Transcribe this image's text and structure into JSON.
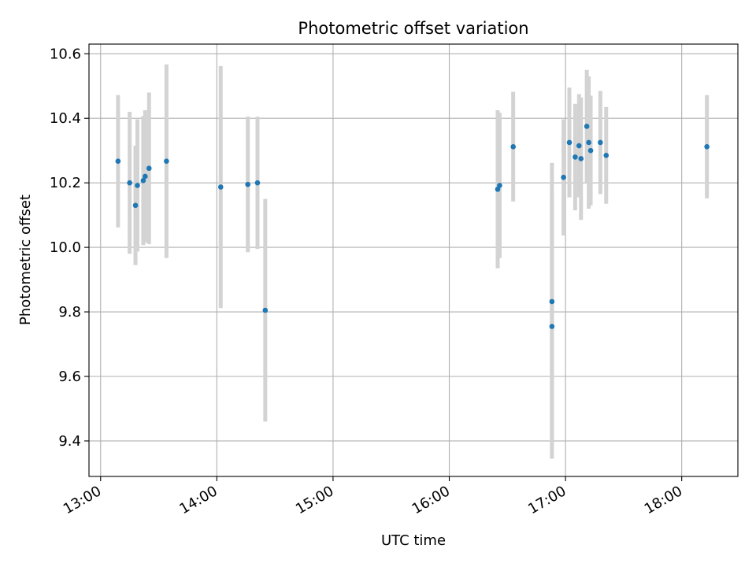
{
  "chart_data": {
    "type": "scatter",
    "title": "Photometric offset variation",
    "xlabel": "UTC time",
    "ylabel": "Photometric offset",
    "x_type": "time",
    "xlim": [
      "12:54",
      "18:29"
    ],
    "ylim": [
      9.29,
      10.63
    ],
    "x_ticks": [
      "13:00",
      "14:00",
      "15:00",
      "16:00",
      "17:00",
      "18:00"
    ],
    "y_ticks": [
      9.4,
      9.6,
      9.8,
      10.0,
      10.2,
      10.4,
      10.6
    ],
    "grid": true,
    "legend": "none",
    "colors": {
      "points": "#1f77b4",
      "errorbars": "#d3d3d3",
      "grid": "#b0b0b0"
    },
    "points": [
      {
        "x": "13:09",
        "y": 10.267,
        "err": 0.205
      },
      {
        "x": "13:15",
        "y": 10.2,
        "err": 0.22
      },
      {
        "x": "13:18",
        "y": 10.13,
        "err": 0.185
      },
      {
        "x": "13:19",
        "y": 10.192,
        "err": 0.205
      },
      {
        "x": "13:22",
        "y": 10.207,
        "err": 0.2
      },
      {
        "x": "13:23",
        "y": 10.22,
        "err": 0.205
      },
      {
        "x": "13:25",
        "y": 10.245,
        "err": 0.235
      },
      {
        "x": "13:34",
        "y": 10.267,
        "err": 0.3
      },
      {
        "x": "14:02",
        "y": 10.187,
        "err": 0.375
      },
      {
        "x": "14:16",
        "y": 10.195,
        "err": 0.21
      },
      {
        "x": "14:21",
        "y": 10.2,
        "err": 0.205
      },
      {
        "x": "14:25",
        "y": 9.805,
        "err": 0.345
      },
      {
        "x": "16:25",
        "y": 10.18,
        "err": 0.245
      },
      {
        "x": "16:26",
        "y": 10.192,
        "err": 0.225
      },
      {
        "x": "16:33",
        "y": 10.312,
        "err": 0.17
      },
      {
        "x": "16:53",
        "y": 9.832,
        "err": 0.43
      },
      {
        "x": "16:53",
        "y": 9.755,
        "err": 0.41
      },
      {
        "x": "16:59",
        "y": 10.217,
        "err": 0.18
      },
      {
        "x": "17:02",
        "y": 10.325,
        "err": 0.17
      },
      {
        "x": "17:05",
        "y": 10.28,
        "err": 0.165
      },
      {
        "x": "17:07",
        "y": 10.315,
        "err": 0.16
      },
      {
        "x": "17:08",
        "y": 10.275,
        "err": 0.19
      },
      {
        "x": "17:11",
        "y": 10.375,
        "err": 0.175
      },
      {
        "x": "17:12",
        "y": 10.325,
        "err": 0.205
      },
      {
        "x": "17:13",
        "y": 10.3,
        "err": 0.17
      },
      {
        "x": "17:18",
        "y": 10.325,
        "err": 0.16
      },
      {
        "x": "17:21",
        "y": 10.285,
        "err": 0.15
      },
      {
        "x": "18:13",
        "y": 10.312,
        "err": 0.16
      }
    ]
  }
}
